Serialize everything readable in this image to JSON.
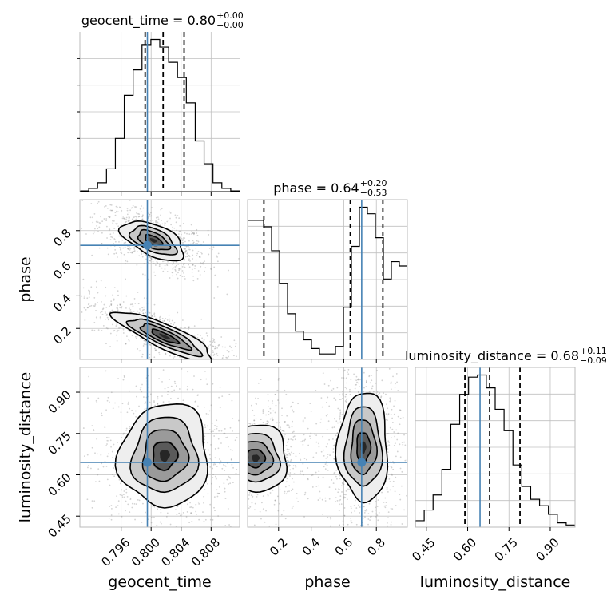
{
  "chart_data": {
    "type": "corner",
    "parameters": [
      "geocent_time",
      "phase",
      "luminosity_distance"
    ],
    "truths": {
      "geocent_time": 0.7995,
      "phase": 0.71,
      "luminosity_distance": 0.645
    },
    "colors": {
      "truth": "#4682b4",
      "hist": "#000000",
      "grid": "#c0c0c0",
      "quantile": "#000000"
    },
    "titles": [
      {
        "param": "geocent_time",
        "text": "geocent_time = 0.80",
        "sup": "+0.00",
        "sub": "−0.00",
        "median": 0.8016,
        "q_low": 0.7992,
        "q_high": 0.8044
      },
      {
        "param": "phase",
        "text": "phase = 0.64",
        "sup": "+0.20",
        "sub": "−0.53",
        "median": 0.64,
        "q_low": 0.11,
        "q_high": 0.84
      },
      {
        "param": "luminosity_distance",
        "text": "luminosity_distance = 0.68",
        "sup": "+0.11",
        "sub": "−0.09",
        "median": 0.68,
        "q_low": 0.59,
        "q_high": 0.79
      }
    ],
    "ranges": {
      "geocent_time": [
        0.7905,
        0.8118
      ],
      "phase": [
        0.01,
        0.99
      ],
      "luminosity_distance": [
        0.41,
        0.99
      ]
    },
    "ticks": {
      "geocent_time": [
        "0.796",
        "0.800",
        "0.804",
        "0.808"
      ],
      "phase": [
        "0.2",
        "0.4",
        "0.6",
        "0.8"
      ],
      "luminosity_distance": [
        "0.45",
        "0.60",
        "0.75",
        "0.90"
      ]
    },
    "hist1d": {
      "geocent_time": {
        "bins": [
          0.7905,
          0.8118
        ],
        "counts": [
          0.3,
          1.3,
          3.5,
          9,
          21,
          38,
          48,
          58,
          60,
          57,
          51,
          45,
          35,
          20,
          11,
          3.5,
          1.3,
          0.3
        ]
      },
      "phase": {
        "bins": [
          0.01,
          0.99
        ],
        "counts": [
          64,
          64,
          61,
          50,
          35,
          21,
          13,
          9,
          5,
          2.5,
          2.5,
          6,
          24,
          52,
          70,
          67,
          56,
          37,
          45,
          43
        ]
      },
      "luminosity_distance": {
        "bins": [
          0.41,
          0.99
        ],
        "counts": [
          3,
          8,
          15,
          27,
          48,
          62,
          70,
          71,
          65,
          55,
          45,
          29,
          19,
          13,
          10,
          6,
          2,
          1
        ]
      }
    },
    "contours_2d": [
      {
        "x": "geocent_time",
        "y": "phase",
        "modes": [
          {
            "cx": 0.8003,
            "cy": 0.74,
            "sx": 0.0019,
            "sy": 0.055,
            "rho": -0.55
          },
          {
            "cx": 0.8018,
            "cy": 0.15,
            "sx": 0.003,
            "sy": 0.07,
            "rho": -0.85
          }
        ]
      },
      {
        "x": "geocent_time",
        "y": "luminosity_distance",
        "modes": [
          {
            "cx": 0.8018,
            "cy": 0.67,
            "sx": 0.0027,
            "sy": 0.085,
            "rho": 0.05
          }
        ]
      },
      {
        "x": "phase",
        "y": "luminosity_distance",
        "modes": [
          {
            "cx": 0.06,
            "cy": 0.66,
            "sx": 0.09,
            "sy": 0.055,
            "rho": 0.0
          },
          {
            "cx": 0.72,
            "cy": 0.7,
            "sx": 0.07,
            "sy": 0.09,
            "rho": 0.0
          }
        ]
      }
    ],
    "grid": true
  }
}
